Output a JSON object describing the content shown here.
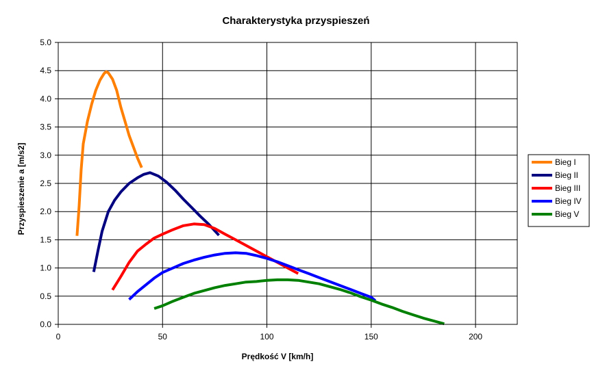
{
  "chart_data": {
    "type": "line",
    "title": "Charakterystyka przyspieszeń",
    "xlabel": "Prędkość V [km/h]",
    "ylabel": "Przyspieszenie a [m/s2]",
    "xlim": [
      0,
      220
    ],
    "ylim": [
      0,
      5
    ],
    "xticks": [
      0,
      50,
      100,
      150,
      200
    ],
    "yticks": [
      0.0,
      0.5,
      1.0,
      1.5,
      2.0,
      2.5,
      3.0,
      3.5,
      4.0,
      4.5,
      5.0
    ],
    "xtick_labels": [
      "0",
      "50",
      "100",
      "150",
      "200"
    ],
    "ytick_labels": [
      "0.0",
      "0.5",
      "1.0",
      "1.5",
      "2.0",
      "2.5",
      "3.0",
      "3.5",
      "4.0",
      "4.5",
      "5.0"
    ],
    "grid": true,
    "legend_position": "right",
    "series": [
      {
        "name": "Bieg I",
        "color": "#ff7f00",
        "points": [
          [
            9,
            1.57
          ],
          [
            10,
            2.1
          ],
          [
            11,
            2.75
          ],
          [
            12,
            3.2
          ],
          [
            14,
            3.6
          ],
          [
            16,
            3.9
          ],
          [
            18,
            4.15
          ],
          [
            20,
            4.33
          ],
          [
            22,
            4.45
          ],
          [
            23,
            4.48
          ],
          [
            24,
            4.46
          ],
          [
            26,
            4.35
          ],
          [
            28,
            4.15
          ],
          [
            30,
            3.85
          ],
          [
            32,
            3.6
          ],
          [
            34,
            3.35
          ],
          [
            36,
            3.15
          ],
          [
            38,
            2.95
          ],
          [
            40,
            2.78
          ]
        ]
      },
      {
        "name": "Bieg II",
        "color": "#000080",
        "points": [
          [
            17,
            0.93
          ],
          [
            19,
            1.3
          ],
          [
            21,
            1.65
          ],
          [
            24,
            2.0
          ],
          [
            27,
            2.2
          ],
          [
            30,
            2.35
          ],
          [
            34,
            2.5
          ],
          [
            38,
            2.6
          ],
          [
            41,
            2.66
          ],
          [
            44,
            2.69
          ],
          [
            48,
            2.63
          ],
          [
            52,
            2.52
          ],
          [
            56,
            2.38
          ],
          [
            60,
            2.22
          ],
          [
            64,
            2.07
          ],
          [
            68,
            1.92
          ],
          [
            72,
            1.78
          ],
          [
            77,
            1.58
          ]
        ]
      },
      {
        "name": "Bieg III",
        "color": "#ff0000",
        "points": [
          [
            26,
            0.61
          ],
          [
            30,
            0.85
          ],
          [
            34,
            1.1
          ],
          [
            38,
            1.3
          ],
          [
            42,
            1.42
          ],
          [
            46,
            1.53
          ],
          [
            50,
            1.6
          ],
          [
            55,
            1.68
          ],
          [
            60,
            1.75
          ],
          [
            65,
            1.78
          ],
          [
            70,
            1.77
          ],
          [
            75,
            1.7
          ],
          [
            80,
            1.6
          ],
          [
            85,
            1.5
          ],
          [
            90,
            1.4
          ],
          [
            95,
            1.3
          ],
          [
            100,
            1.2
          ],
          [
            105,
            1.1
          ],
          [
            110,
            1.0
          ],
          [
            115,
            0.9
          ]
        ]
      },
      {
        "name": "Bieg IV",
        "color": "#0000ff",
        "points": [
          [
            34,
            0.44
          ],
          [
            38,
            0.58
          ],
          [
            42,
            0.7
          ],
          [
            46,
            0.82
          ],
          [
            50,
            0.92
          ],
          [
            55,
            1.0
          ],
          [
            60,
            1.08
          ],
          [
            65,
            1.14
          ],
          [
            70,
            1.19
          ],
          [
            75,
            1.23
          ],
          [
            80,
            1.26
          ],
          [
            85,
            1.27
          ],
          [
            90,
            1.26
          ],
          [
            95,
            1.22
          ],
          [
            100,
            1.17
          ],
          [
            105,
            1.11
          ],
          [
            110,
            1.04
          ],
          [
            115,
            0.97
          ],
          [
            120,
            0.9
          ],
          [
            125,
            0.83
          ],
          [
            130,
            0.76
          ],
          [
            135,
            0.69
          ],
          [
            140,
            0.62
          ],
          [
            145,
            0.55
          ],
          [
            150,
            0.48
          ],
          [
            152,
            0.42
          ]
        ]
      },
      {
        "name": "Bieg V",
        "color": "#008000",
        "points": [
          [
            46,
            0.28
          ],
          [
            50,
            0.33
          ],
          [
            55,
            0.41
          ],
          [
            60,
            0.48
          ],
          [
            65,
            0.55
          ],
          [
            70,
            0.6
          ],
          [
            75,
            0.65
          ],
          [
            80,
            0.69
          ],
          [
            85,
            0.72
          ],
          [
            90,
            0.75
          ],
          [
            95,
            0.76
          ],
          [
            100,
            0.78
          ],
          [
            105,
            0.79
          ],
          [
            110,
            0.79
          ],
          [
            115,
            0.78
          ],
          [
            120,
            0.75
          ],
          [
            125,
            0.72
          ],
          [
            130,
            0.67
          ],
          [
            135,
            0.62
          ],
          [
            140,
            0.56
          ],
          [
            145,
            0.49
          ],
          [
            150,
            0.43
          ],
          [
            155,
            0.36
          ],
          [
            160,
            0.3
          ],
          [
            165,
            0.23
          ],
          [
            170,
            0.17
          ],
          [
            175,
            0.11
          ],
          [
            180,
            0.06
          ],
          [
            185,
            0.01
          ]
        ]
      }
    ]
  }
}
